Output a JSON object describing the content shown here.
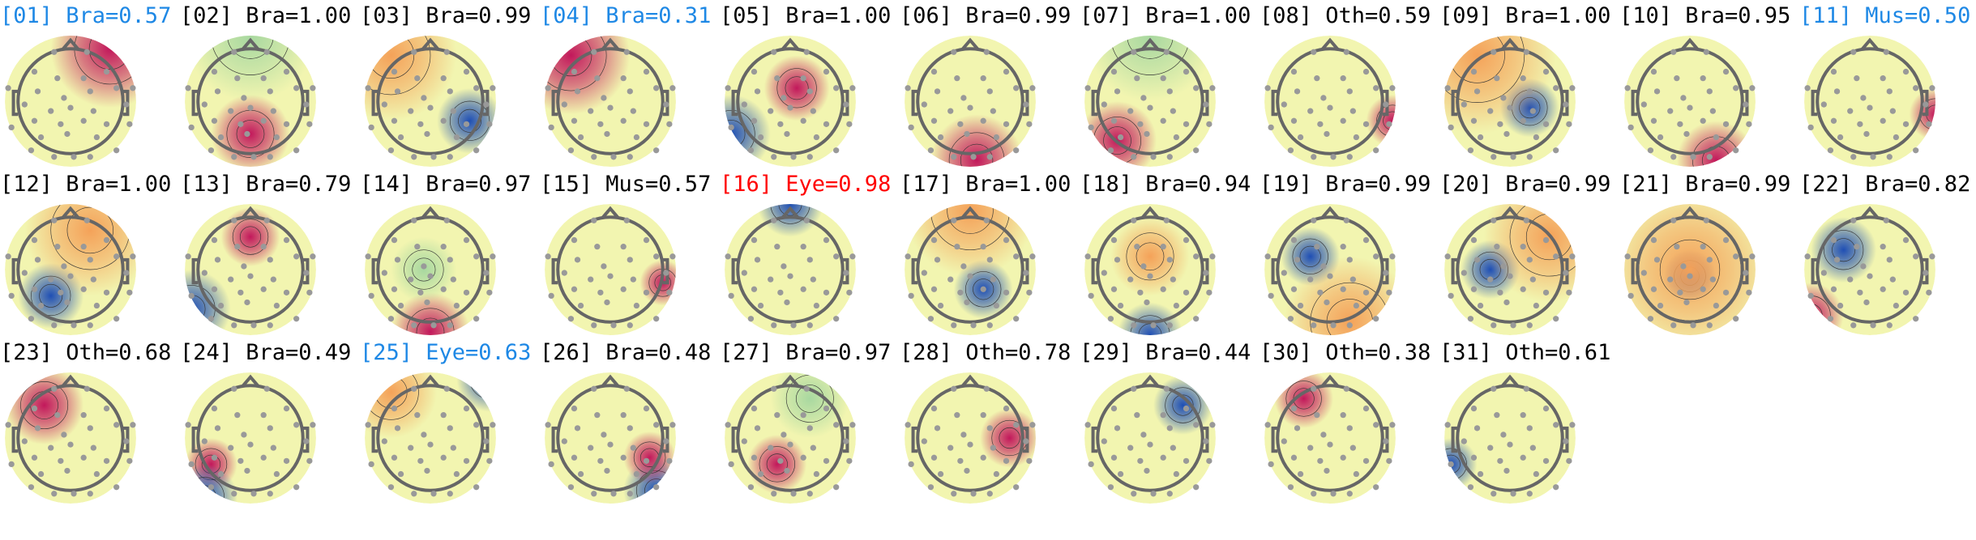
{
  "colors": {
    "default": "#000000",
    "flagged": "#1e88e5",
    "excluded": "#ff0000"
  },
  "components": [
    {
      "label": "[01] Bra=0.57",
      "status": "flagged"
    },
    {
      "label": "[02] Bra=1.00",
      "status": "default"
    },
    {
      "label": "[03] Bra=0.99",
      "status": "default"
    },
    {
      "label": "[04] Bra=0.31",
      "status": "flagged"
    },
    {
      "label": "[05] Bra=1.00",
      "status": "default"
    },
    {
      "label": "[06] Bra=0.99",
      "status": "default"
    },
    {
      "label": "[07] Bra=1.00",
      "status": "default"
    },
    {
      "label": "[08] Oth=0.59",
      "status": "default"
    },
    {
      "label": "[09] Bra=1.00",
      "status": "default"
    },
    {
      "label": "[10] Bra=0.95",
      "status": "default"
    },
    {
      "label": "[11] Mus=0.50",
      "status": "flagged"
    },
    {
      "label": "[12] Bra=1.00",
      "status": "default"
    },
    {
      "label": "[13] Bra=0.79",
      "status": "default"
    },
    {
      "label": "[14] Bra=0.97",
      "status": "default"
    },
    {
      "label": "[15] Mus=0.57",
      "status": "default"
    },
    {
      "label": "[16] Eye=0.98",
      "status": "excluded"
    },
    {
      "label": "[17] Bra=1.00",
      "status": "default"
    },
    {
      "label": "[18] Bra=0.94",
      "status": "default"
    },
    {
      "label": "[19] Bra=0.99",
      "status": "default"
    },
    {
      "label": "[20] Bra=0.99",
      "status": "default"
    },
    {
      "label": "[21] Bra=0.99",
      "status": "default"
    },
    {
      "label": "[22] Bra=0.82",
      "status": "default"
    },
    {
      "label": "[23] Oth=0.68",
      "status": "default"
    },
    {
      "label": "[24] Bra=0.49",
      "status": "default"
    },
    {
      "label": "[25] Eye=0.63",
      "status": "flagged"
    },
    {
      "label": "[26] Bra=0.48",
      "status": "default"
    },
    {
      "label": "[27] Bra=0.97",
      "status": "default"
    },
    {
      "label": "[28] Oth=0.78",
      "status": "default"
    },
    {
      "label": "[29] Bra=0.44",
      "status": "default"
    },
    {
      "label": "[30] Oth=0.38",
      "status": "default"
    },
    {
      "label": "[31] Oth=0.61",
      "status": "default"
    }
  ]
}
